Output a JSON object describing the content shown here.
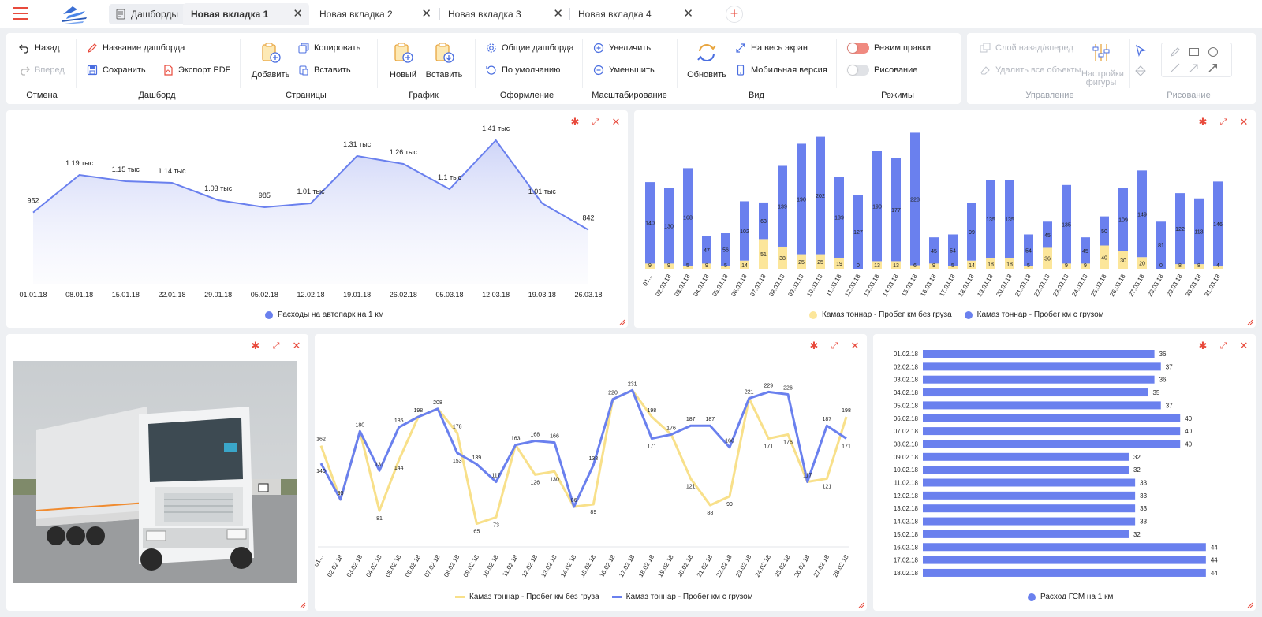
{
  "topbar": {
    "dashboards_label": "Дашборды",
    "tabs": [
      {
        "label": "Новая вкладка 1",
        "active": true
      },
      {
        "label": "Новая вкладка 2",
        "active": false
      },
      {
        "label": "Новая вкладка 3",
        "active": false
      },
      {
        "label": "Новая вкладка 4",
        "active": false
      }
    ],
    "close_glyph": "✕",
    "add_glyph": "+"
  },
  "toolbar": {
    "undo": {
      "back": "Назад",
      "forward": "Вперед",
      "group": "Отмена"
    },
    "dashboard": {
      "name": "Название дашборда",
      "save": "Сохранить",
      "export_pdf": "Экспорт PDF",
      "group": "Дашборд"
    },
    "pages": {
      "add": "Добавить",
      "copy": "Копировать",
      "paste": "Вставить",
      "group": "Страницы"
    },
    "chart": {
      "new": "Новый",
      "paste": "Вставить",
      "group": "График"
    },
    "design": {
      "common": "Общие дашборда",
      "default": "По умолчанию",
      "group": "Оформление"
    },
    "scale": {
      "zoom_in": "Увеличить",
      "zoom_out": "Уменьшить",
      "group": "Масштабирование"
    },
    "view": {
      "refresh": "Обновить",
      "fullscreen": "На весь экран",
      "mobile": "Мобильная версия",
      "group": "Вид"
    },
    "modes": {
      "edit": "Режим правки",
      "drawing": "Рисование",
      "group": "Режимы",
      "edit_on": true,
      "drawing_on": false
    },
    "manage": {
      "layer": "Слой назад/вперед",
      "delete_all": "Удалить все объекты",
      "group": "Управление",
      "shape_settings": "Настройки фигуры"
    },
    "draw": {
      "group": "Рисование"
    }
  },
  "colors": {
    "accent": "#e84a3c",
    "blue": "#6a80ee",
    "yellow": "#fce69a",
    "yellow_line": "#f8e08a"
  },
  "chart_data": [
    {
      "type": "area",
      "categories": [
        "01.01.18",
        "08.01.18",
        "15.01.18",
        "22.01.18",
        "29.01.18",
        "05.02.18",
        "12.02.18",
        "19.01.18",
        "26.02.18",
        "05.03.18",
        "12.03.18",
        "19.03.18",
        "26.03.18"
      ],
      "values": [
        952,
        1190,
        1150,
        1140,
        1030,
        985,
        1010,
        1310,
        1260,
        1100,
        1410,
        1010,
        842
      ],
      "data_labels": [
        "952",
        "1.19 тыс",
        "1.15 тыс",
        "1.14 тыс",
        "1.03 тыс",
        "985",
        "1.01 тыс",
        "1.31 тыс",
        "1.26 тыс",
        "1.1 тыс",
        "1.41 тыс",
        "1.01 тыс",
        "842"
      ],
      "series": [
        {
          "name": "Расходы на автопарк на 1 км"
        }
      ],
      "ylim": [
        500,
        1500
      ],
      "grid": false,
      "legend": "bottom"
    },
    {
      "type": "bar",
      "stacked": true,
      "categories": [
        "01...",
        "02.03.18",
        "03.03.18",
        "04.03.18",
        "05.03.18",
        "06.03.18",
        "07.03.18",
        "08.03.18",
        "09.03.18",
        "10.03.18",
        "11.03.18",
        "12.03.18",
        "13.03.18",
        "14.03.18",
        "15.03.18",
        "16.03.18",
        "17.03.18",
        "18.03.18",
        "19.03.18",
        "20.03.18",
        "21.03.18",
        "22.03.18",
        "23.03.18",
        "24.03.18",
        "25.03.18",
        "26.03.18",
        "27.03.18",
        "28.03.18",
        "29.03.18",
        "30.03.18",
        "31.03.18"
      ],
      "series": [
        {
          "name": "Камаз тоннар - Пробег км без груза",
          "color": "#fce69a",
          "values": [
            9,
            9,
            5,
            9,
            5,
            14,
            51,
            38,
            25,
            25,
            19,
            0,
            13,
            13,
            6,
            9,
            5,
            14,
            18,
            18,
            5,
            36,
            9,
            9,
            40,
            30,
            20,
            0,
            8,
            8,
            4
          ]
        },
        {
          "name": "Камаз тоннар - Пробег км с грузом",
          "color": "#6a80ee",
          "values": [
            140,
            130,
            168,
            47,
            56,
            102,
            63,
            139,
            190,
            202,
            139,
            127,
            190,
            177,
            228,
            45,
            54,
            99,
            135,
            135,
            54,
            45,
            135,
            45,
            50,
            109,
            149,
            81,
            122,
            113,
            146
          ]
        }
      ],
      "ylim": [
        0,
        240
      ],
      "grid": false,
      "legend": "bottom"
    },
    {
      "type": "line",
      "categories": [
        "01...",
        "02.02.18",
        "03.02.18",
        "04.02.18",
        "05.02.18",
        "06.02.18",
        "07.02.18",
        "08.02.18",
        "09.02.18",
        "10.02.18",
        "11.02.18",
        "12.02.18",
        "13.02.18",
        "14.02.18",
        "15.02.18",
        "16.02.18",
        "17.02.18",
        "18.02.18",
        "19.02.18",
        "20.02.18",
        "21.02.18",
        "22.02.18",
        "23.02.18",
        "24.02.18",
        "25.02.18",
        "26.02.18",
        "27.02.18",
        "28.02.18"
      ],
      "series": [
        {
          "name": "Камаз тоннар - Пробег км без груза",
          "color": "#f8e08a",
          "values": [
            162,
            95,
            180,
            81,
            144,
            198,
            208,
            178,
            65,
            73,
            163,
            126,
            130,
            86,
            89,
            220,
            231,
            198,
            176,
            121,
            88,
            99,
            221,
            171,
            176,
            117,
            121,
            198
          ]
        },
        {
          "name": "Камаз тоннар - Пробег км с грузом",
          "color": "#6a80ee",
          "values": [
            140,
            95,
            180,
            131,
            185,
            198,
            208,
            153,
            139,
            117,
            163,
            168,
            166,
            86,
            138,
            220,
            231,
            171,
            176,
            187,
            187,
            160,
            221,
            229,
            226,
            117,
            187,
            171
          ]
        }
      ],
      "ylim": [
        40,
        250
      ],
      "grid": false,
      "legend": "bottom"
    },
    {
      "type": "bar",
      "orientation": "horizontal",
      "categories": [
        "01.02.18",
        "02.02.18",
        "03.02.18",
        "04.02.18",
        "05.02.18",
        "06.02.18",
        "07.02.18",
        "08.02.18",
        "09.02.18",
        "10.02.18",
        "11.02.18",
        "12.02.18",
        "13.02.18",
        "14.02.18",
        "15.02.18",
        "16.02.18",
        "17.02.18",
        "18.02.18"
      ],
      "values": [
        36,
        37,
        36,
        35,
        37,
        40,
        40,
        40,
        32,
        32,
        33,
        33,
        33,
        33,
        32,
        44,
        44,
        44
      ],
      "series": [
        {
          "name": "Расход ГСМ на 1 км",
          "color": "#6a80ee"
        }
      ],
      "xlim": [
        0,
        45
      ],
      "grid": false,
      "legend": "bottom"
    }
  ]
}
